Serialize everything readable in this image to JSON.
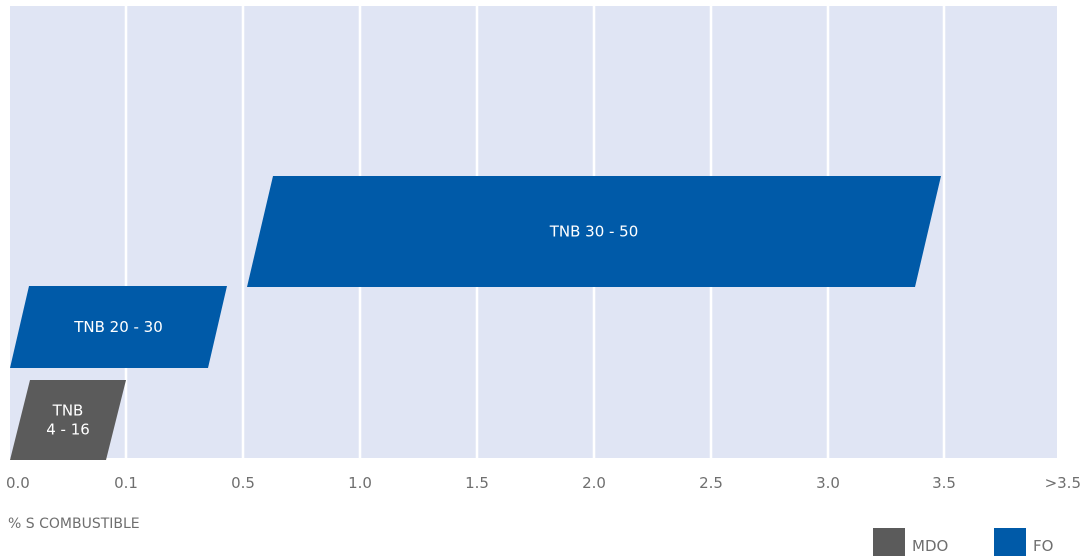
{
  "chart_data": {
    "type": "bar",
    "xlabel": "% S COMBUSTIBLE",
    "x_ticks": [
      "0.0",
      "0.1",
      "0.5",
      "1.0",
      "1.5",
      "2.0",
      "2.5",
      "3.0",
      "3.5",
      ">3.5"
    ],
    "colors": {
      "plot_bg": "#e0e5f4",
      "grid": "#ffffff",
      "MDO": "#5b5b5b",
      "FO": "#005aa8"
    },
    "series": [
      {
        "name": "MDO",
        "color": "#5b5b5b"
      },
      {
        "name": "FO",
        "color": "#005aa8"
      }
    ],
    "bars": [
      {
        "series": "MDO",
        "label": [
          "TNB",
          "4 - 16"
        ],
        "x_start": "0.0",
        "x_end": "0.1",
        "tnb_min": 4,
        "tnb_max": 16
      },
      {
        "series": "FO",
        "label": [
          "TNB 20 - 30"
        ],
        "x_start": "0.0",
        "x_end": "0.5",
        "tnb_min": 20,
        "tnb_max": 30
      },
      {
        "series": "FO",
        "label": [
          "TNB 30 - 50"
        ],
        "x_start": "0.5",
        "x_end": "3.5",
        "tnb_min": 30,
        "tnb_max": 50
      }
    ],
    "legend": {
      "position": "bottom-right",
      "entries": [
        "MDO",
        "FO"
      ]
    },
    "grid": true
  }
}
